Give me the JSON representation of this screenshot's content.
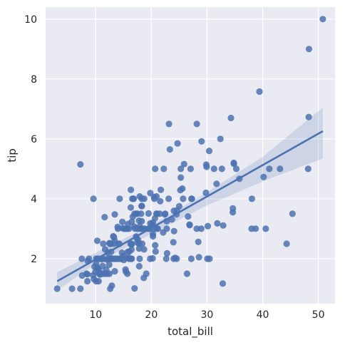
{
  "chart_data": {
    "type": "scatter",
    "title": "",
    "xlabel": "total_bill",
    "ylabel": "tip",
    "xlim": [
      1.0,
      53.0
    ],
    "ylim": [
      0.5,
      10.4
    ],
    "xticks": [
      10,
      20,
      30,
      40,
      50
    ],
    "yticks": [
      2,
      4,
      6,
      8,
      10
    ],
    "grid": true,
    "colors": {
      "background": "#eaeaf2",
      "grid": "#ffffff",
      "points": "#4c72b0",
      "regression_line": "#4c72b0",
      "confidence_band": "#4c72b0"
    },
    "points": [
      [
        3.07,
        1.0
      ],
      [
        5.75,
        1.0
      ],
      [
        7.25,
        1.0
      ],
      [
        7.25,
        5.15
      ],
      [
        7.51,
        2.0
      ],
      [
        7.56,
        1.44
      ],
      [
        8.35,
        1.5
      ],
      [
        8.51,
        1.25
      ],
      [
        8.52,
        1.48
      ],
      [
        8.58,
        1.92
      ],
      [
        8.77,
        2.0
      ],
      [
        9.55,
        1.45
      ],
      [
        9.6,
        4.0
      ],
      [
        9.68,
        1.32
      ],
      [
        9.78,
        1.73
      ],
      [
        9.94,
        1.56
      ],
      [
        10.07,
        1.25
      ],
      [
        10.07,
        1.83
      ],
      [
        10.09,
        2.0
      ],
      [
        10.27,
        1.71
      ],
      [
        10.29,
        2.6
      ],
      [
        10.33,
        1.67
      ],
      [
        10.33,
        2.0
      ],
      [
        10.34,
        1.66
      ],
      [
        10.34,
        2.0
      ],
      [
        10.51,
        1.25
      ],
      [
        10.59,
        1.61
      ],
      [
        10.63,
        2.0
      ],
      [
        10.65,
        1.5
      ],
      [
        10.77,
        1.47
      ],
      [
        11.02,
        1.98
      ],
      [
        11.17,
        1.5
      ],
      [
        11.24,
        1.76
      ],
      [
        11.35,
        2.5
      ],
      [
        11.38,
        2.0
      ],
      [
        11.59,
        1.5
      ],
      [
        11.61,
        3.39
      ],
      [
        11.69,
        2.31
      ],
      [
        11.87,
        1.63
      ],
      [
        12.02,
        1.97
      ],
      [
        12.03,
        1.5
      ],
      [
        12.16,
        2.2
      ],
      [
        12.26,
        2.0
      ],
      [
        12.43,
        1.8
      ],
      [
        12.46,
        1.5
      ],
      [
        12.48,
        2.52
      ],
      [
        12.54,
        2.5
      ],
      [
        12.6,
        1.0
      ],
      [
        12.66,
        2.5
      ],
      [
        12.69,
        2.0
      ],
      [
        12.74,
        2.01
      ],
      [
        12.76,
        2.23
      ],
      [
        12.9,
        1.1
      ],
      [
        13.0,
        2.0
      ],
      [
        13.03,
        2.0
      ],
      [
        13.13,
        2.0
      ],
      [
        13.16,
        2.75
      ],
      [
        13.27,
        2.5
      ],
      [
        13.28,
        2.72
      ],
      [
        13.37,
        2.0
      ],
      [
        13.39,
        2.61
      ],
      [
        13.42,
        3.48
      ],
      [
        13.42,
        1.58
      ],
      [
        13.51,
        2.0
      ],
      [
        13.81,
        2.0
      ],
      [
        13.94,
        3.06
      ],
      [
        14.0,
        3.0
      ],
      [
        14.07,
        2.5
      ],
      [
        14.15,
        2.0
      ],
      [
        14.26,
        2.5
      ],
      [
        14.31,
        4.0
      ],
      [
        14.48,
        2.0
      ],
      [
        14.52,
        2.0
      ],
      [
        14.73,
        2.2
      ],
      [
        14.78,
        3.23
      ],
      [
        14.83,
        3.02
      ],
      [
        15.01,
        2.09
      ],
      [
        15.04,
        1.96
      ],
      [
        15.06,
        3.0
      ],
      [
        15.36,
        1.64
      ],
      [
        15.38,
        3.0
      ],
      [
        15.42,
        1.57
      ],
      [
        15.48,
        2.02
      ],
      [
        15.53,
        3.0
      ],
      [
        15.69,
        3.0
      ],
      [
        15.69,
        1.5
      ],
      [
        15.77,
        2.23
      ],
      [
        15.81,
        3.16
      ],
      [
        15.98,
        2.03
      ],
      [
        15.98,
        3.0
      ],
      [
        16.0,
        2.0
      ],
      [
        16.04,
        2.24
      ],
      [
        16.21,
        2.0
      ],
      [
        16.27,
        2.5
      ],
      [
        16.29,
        3.71
      ],
      [
        16.31,
        2.0
      ],
      [
        16.32,
        4.3
      ],
      [
        16.4,
        2.5
      ],
      [
        16.43,
        2.3
      ],
      [
        16.45,
        2.47
      ],
      [
        16.47,
        3.23
      ],
      [
        16.49,
        2.0
      ],
      [
        16.58,
        4.0
      ],
      [
        16.66,
        3.4
      ],
      [
        16.76,
        4.0
      ],
      [
        16.82,
        4.0
      ],
      [
        16.93,
        3.07
      ],
      [
        16.97,
        3.5
      ],
      [
        16.99,
        1.01
      ],
      [
        17.07,
        3.0
      ],
      [
        17.26,
        2.74
      ],
      [
        17.29,
        2.71
      ],
      [
        17.31,
        3.5
      ],
      [
        17.46,
        2.54
      ],
      [
        17.47,
        3.5
      ],
      [
        17.51,
        3.0
      ],
      [
        17.59,
        2.64
      ],
      [
        17.78,
        3.27
      ],
      [
        17.8,
        2.5
      ],
      [
        17.81,
        2.34
      ],
      [
        17.82,
        1.75
      ],
      [
        17.89,
        2.0
      ],
      [
        17.92,
        4.08
      ],
      [
        17.92,
        3.08
      ],
      [
        18.04,
        3.0
      ],
      [
        18.15,
        3.5
      ],
      [
        18.24,
        3.76
      ],
      [
        18.26,
        3.25
      ],
      [
        18.28,
        4.0
      ],
      [
        18.29,
        3.76
      ],
      [
        18.29,
        3.0
      ],
      [
        18.35,
        2.5
      ],
      [
        18.43,
        3.0
      ],
      [
        18.64,
        1.36
      ],
      [
        18.69,
        2.31
      ],
      [
        18.71,
        4.0
      ],
      [
        18.78,
        3.0
      ],
      [
        19.08,
        1.5
      ],
      [
        19.44,
        3.0
      ],
      [
        19.49,
        3.51
      ],
      [
        19.65,
        3.0
      ],
      [
        19.77,
        2.0
      ],
      [
        19.81,
        4.19
      ],
      [
        19.82,
        3.18
      ],
      [
        20.08,
        3.15
      ],
      [
        20.23,
        2.01
      ],
      [
        20.27,
        2.83
      ],
      [
        20.29,
        3.21
      ],
      [
        20.29,
        2.75
      ],
      [
        20.45,
        3.0
      ],
      [
        20.49,
        4.06
      ],
      [
        20.53,
        4.0
      ],
      [
        20.65,
        3.35
      ],
      [
        20.69,
        2.45
      ],
      [
        20.69,
        5.0
      ],
      [
        20.76,
        2.24
      ],
      [
        20.9,
        3.5
      ],
      [
        20.92,
        4.08
      ],
      [
        21.01,
        3.0
      ],
      [
        21.01,
        3.5
      ],
      [
        21.16,
        3.0
      ],
      [
        21.5,
        3.5
      ],
      [
        21.58,
        3.92
      ],
      [
        21.7,
        4.3
      ],
      [
        22.12,
        2.88
      ],
      [
        22.23,
        5.0
      ],
      [
        22.42,
        3.48
      ],
      [
        22.49,
        3.5
      ],
      [
        22.67,
        2.0
      ],
      [
        22.75,
        3.25
      ],
      [
        22.76,
        3.0
      ],
      [
        22.82,
        2.18
      ],
      [
        23.1,
        4.0
      ],
      [
        23.17,
        6.5
      ],
      [
        23.33,
        5.65
      ],
      [
        23.68,
        3.31
      ],
      [
        23.95,
        2.55
      ],
      [
        24.01,
        2.0
      ],
      [
        24.06,
        3.6
      ],
      [
        24.08,
        2.92
      ],
      [
        24.27,
        2.03
      ],
      [
        24.52,
        3.48
      ],
      [
        24.55,
        2.0
      ],
      [
        24.59,
        3.61
      ],
      [
        24.71,
        5.85
      ],
      [
        25.0,
        3.75
      ],
      [
        25.21,
        4.29
      ],
      [
        25.28,
        5.0
      ],
      [
        25.29,
        4.71
      ],
      [
        25.56,
        4.34
      ],
      [
        25.71,
        4.0
      ],
      [
        25.89,
        5.16
      ],
      [
        26.41,
        1.5
      ],
      [
        26.59,
        3.41
      ],
      [
        26.86,
        3.14
      ],
      [
        26.88,
        3.12
      ],
      [
        27.05,
        5.0
      ],
      [
        27.18,
        2.0
      ],
      [
        27.2,
        4.0
      ],
      [
        27.28,
        4.0
      ],
      [
        28.15,
        3.0
      ],
      [
        28.17,
        6.5
      ],
      [
        28.44,
        2.56
      ],
      [
        28.55,
        2.05
      ],
      [
        28.97,
        3.0
      ],
      [
        29.03,
        5.92
      ],
      [
        29.8,
        4.2
      ],
      [
        29.85,
        5.14
      ],
      [
        29.93,
        5.07
      ],
      [
        30.06,
        2.0
      ],
      [
        30.14,
        3.09
      ],
      [
        30.4,
        5.6
      ],
      [
        30.46,
        2.0
      ],
      [
        31.27,
        5.0
      ],
      [
        31.71,
        4.5
      ],
      [
        31.85,
        3.18
      ],
      [
        32.4,
        6.0
      ],
      [
        32.68,
        5.0
      ],
      [
        32.83,
        1.17
      ],
      [
        32.9,
        3.11
      ],
      [
        34.3,
        6.7
      ],
      [
        34.63,
        3.55
      ],
      [
        34.65,
        3.68
      ],
      [
        34.81,
        5.2
      ],
      [
        34.83,
        5.17
      ],
      [
        35.26,
        5.0
      ],
      [
        35.83,
        4.67
      ],
      [
        38.01,
        3.0
      ],
      [
        38.07,
        4.0
      ],
      [
        38.73,
        3.0
      ],
      [
        39.42,
        7.58
      ],
      [
        40.17,
        4.73
      ],
      [
        40.55,
        3.0
      ],
      [
        41.19,
        5.0
      ],
      [
        43.11,
        5.0
      ],
      [
        44.3,
        2.5
      ],
      [
        45.35,
        3.5
      ],
      [
        48.17,
        5.0
      ],
      [
        48.27,
        6.73
      ],
      [
        48.33,
        9.0
      ],
      [
        50.81,
        10.0
      ]
    ],
    "regression": {
      "x_range": [
        3.07,
        50.81
      ],
      "y_start": 1.25,
      "y_end": 6.26,
      "ci": [
        {
          "x": 3.07,
          "lo": 0.95,
          "hi": 1.55
        },
        {
          "x": 10.0,
          "lo": 1.83,
          "hi": 2.2
        },
        {
          "x": 20.0,
          "lo": 2.83,
          "hi": 3.12
        },
        {
          "x": 30.0,
          "lo": 3.78,
          "hi": 4.22
        },
        {
          "x": 40.0,
          "lo": 4.58,
          "hi": 5.4
        },
        {
          "x": 50.81,
          "lo": 5.35,
          "hi": 7.05
        }
      ]
    }
  }
}
